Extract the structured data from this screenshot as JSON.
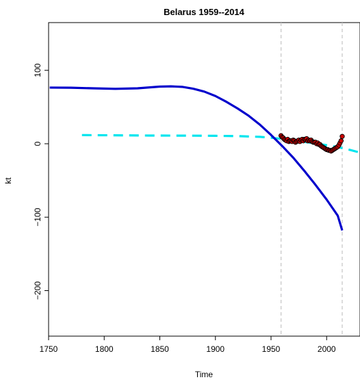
{
  "chart_data": {
    "type": "line",
    "title": "Belarus 1959--2014",
    "xlabel": "Time",
    "ylabel": "kt",
    "xlim": [
      1750,
      2030
    ],
    "ylim": [
      -262,
      165
    ],
    "x_ticks": [
      1750,
      1800,
      1850,
      1900,
      1950,
      2000
    ],
    "x_tick_labels": [
      "1750",
      "1800",
      "1850",
      "1900",
      "1950",
      "2000"
    ],
    "y_ticks": [
      100,
      0,
      -100,
      -200
    ],
    "y_tick_labels": [
      "100",
      "0",
      "−100",
      "−200"
    ],
    "vlines": [
      1959,
      2014
    ],
    "grid": false,
    "series": [
      {
        "style": "solid",
        "color": "#0000cc",
        "x": [
          1751,
          1770,
          1790,
          1810,
          1830,
          1850,
          1860,
          1870,
          1880,
          1890,
          1900,
          1910,
          1920,
          1930,
          1940,
          1950,
          1960,
          1970,
          1980,
          1990,
          2000,
          2010,
          2014
        ],
        "y": [
          76.5,
          76.3,
          75.5,
          74.8,
          75.5,
          77.8,
          78.2,
          77.5,
          75,
          71,
          65,
          57,
          48,
          38,
          26,
          12,
          -3,
          -19,
          -37,
          -56,
          -76,
          -98,
          -118
        ]
      },
      {
        "style": "dashed",
        "color": "#00e5ee",
        "x": [
          1780,
          1800,
          1820,
          1840,
          1860,
          1880,
          1900,
          1920,
          1940,
          1950,
          1960,
          1970,
          1980,
          1990,
          2000,
          2010,
          2020,
          2030
        ],
        "y": [
          11.8,
          11.6,
          11.4,
          11.2,
          11.1,
          11,
          10.8,
          10.4,
          9.4,
          8.2,
          6.5,
          4.5,
          2.5,
          0.5,
          -2,
          -4.5,
          -8,
          -12
        ]
      },
      {
        "style": "points",
        "color": "#cc0000",
        "x": [
          1959,
          1960,
          1961,
          1962,
          1963,
          1964,
          1965,
          1966,
          1967,
          1968,
          1969,
          1970,
          1971,
          1972,
          1973,
          1974,
          1975,
          1976,
          1977,
          1978,
          1979,
          1980,
          1981,
          1982,
          1983,
          1984,
          1985,
          1986,
          1987,
          1988,
          1989,
          1990,
          1991,
          1992,
          1993,
          1994,
          1995,
          1996,
          1997,
          1998,
          1999,
          2000,
          2001,
          2002,
          2003,
          2004,
          2005,
          2006,
          2007,
          2008,
          2009,
          2010,
          2011,
          2012,
          2013,
          2014
        ],
        "y": [
          11,
          9,
          8,
          6,
          5,
          4,
          6,
          3,
          4,
          4,
          3,
          5,
          4,
          2,
          3,
          4,
          5,
          3,
          5,
          6,
          4,
          6,
          6,
          7,
          4,
          5,
          4,
          5,
          3,
          2,
          2,
          2,
          0,
          1,
          -1,
          -1,
          -3,
          -4,
          -5,
          -6,
          -7,
          -8,
          -8,
          -9,
          -9,
          -10,
          -9,
          -8,
          -7,
          -6,
          -5,
          -4,
          -2,
          1,
          4,
          10
        ]
      }
    ]
  }
}
